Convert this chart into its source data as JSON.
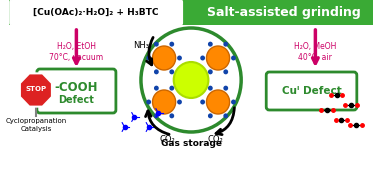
{
  "bg_color": "#ffffff",
  "header_bg": "#3aaa35",
  "header_text_left": "[Cu(OAc)₂·H₂O]₂ + H₃BTC",
  "header_text_right": "Salt-assisted grinding",
  "left_conditions": "H₂O, EtOH\n70°C, vacuum",
  "right_conditions": "H₂O, MeOH\n40°C, air",
  "left_box_text_line1": "-COOH",
  "left_box_text_line2": "Defect",
  "right_box_text_line1": "Cuᴵ Defect",
  "stop_text": "STOP",
  "bottom_left_text": "Cyclopropanation\nCatalysis",
  "bottom_center_text": "Gas storage",
  "nh3_label": "NH₃",
  "co2_label_left": "CO₂",
  "co2_label_right": "CO₂",
  "magenta": "#cc0066",
  "dark_green": "#2d8a2d",
  "green_header": "#3aaa35",
  "red_stop": "#dd2222",
  "arrow_magenta": "#cc0066",
  "arrow_black": "#111111",
  "box_green": "#3aaa35"
}
